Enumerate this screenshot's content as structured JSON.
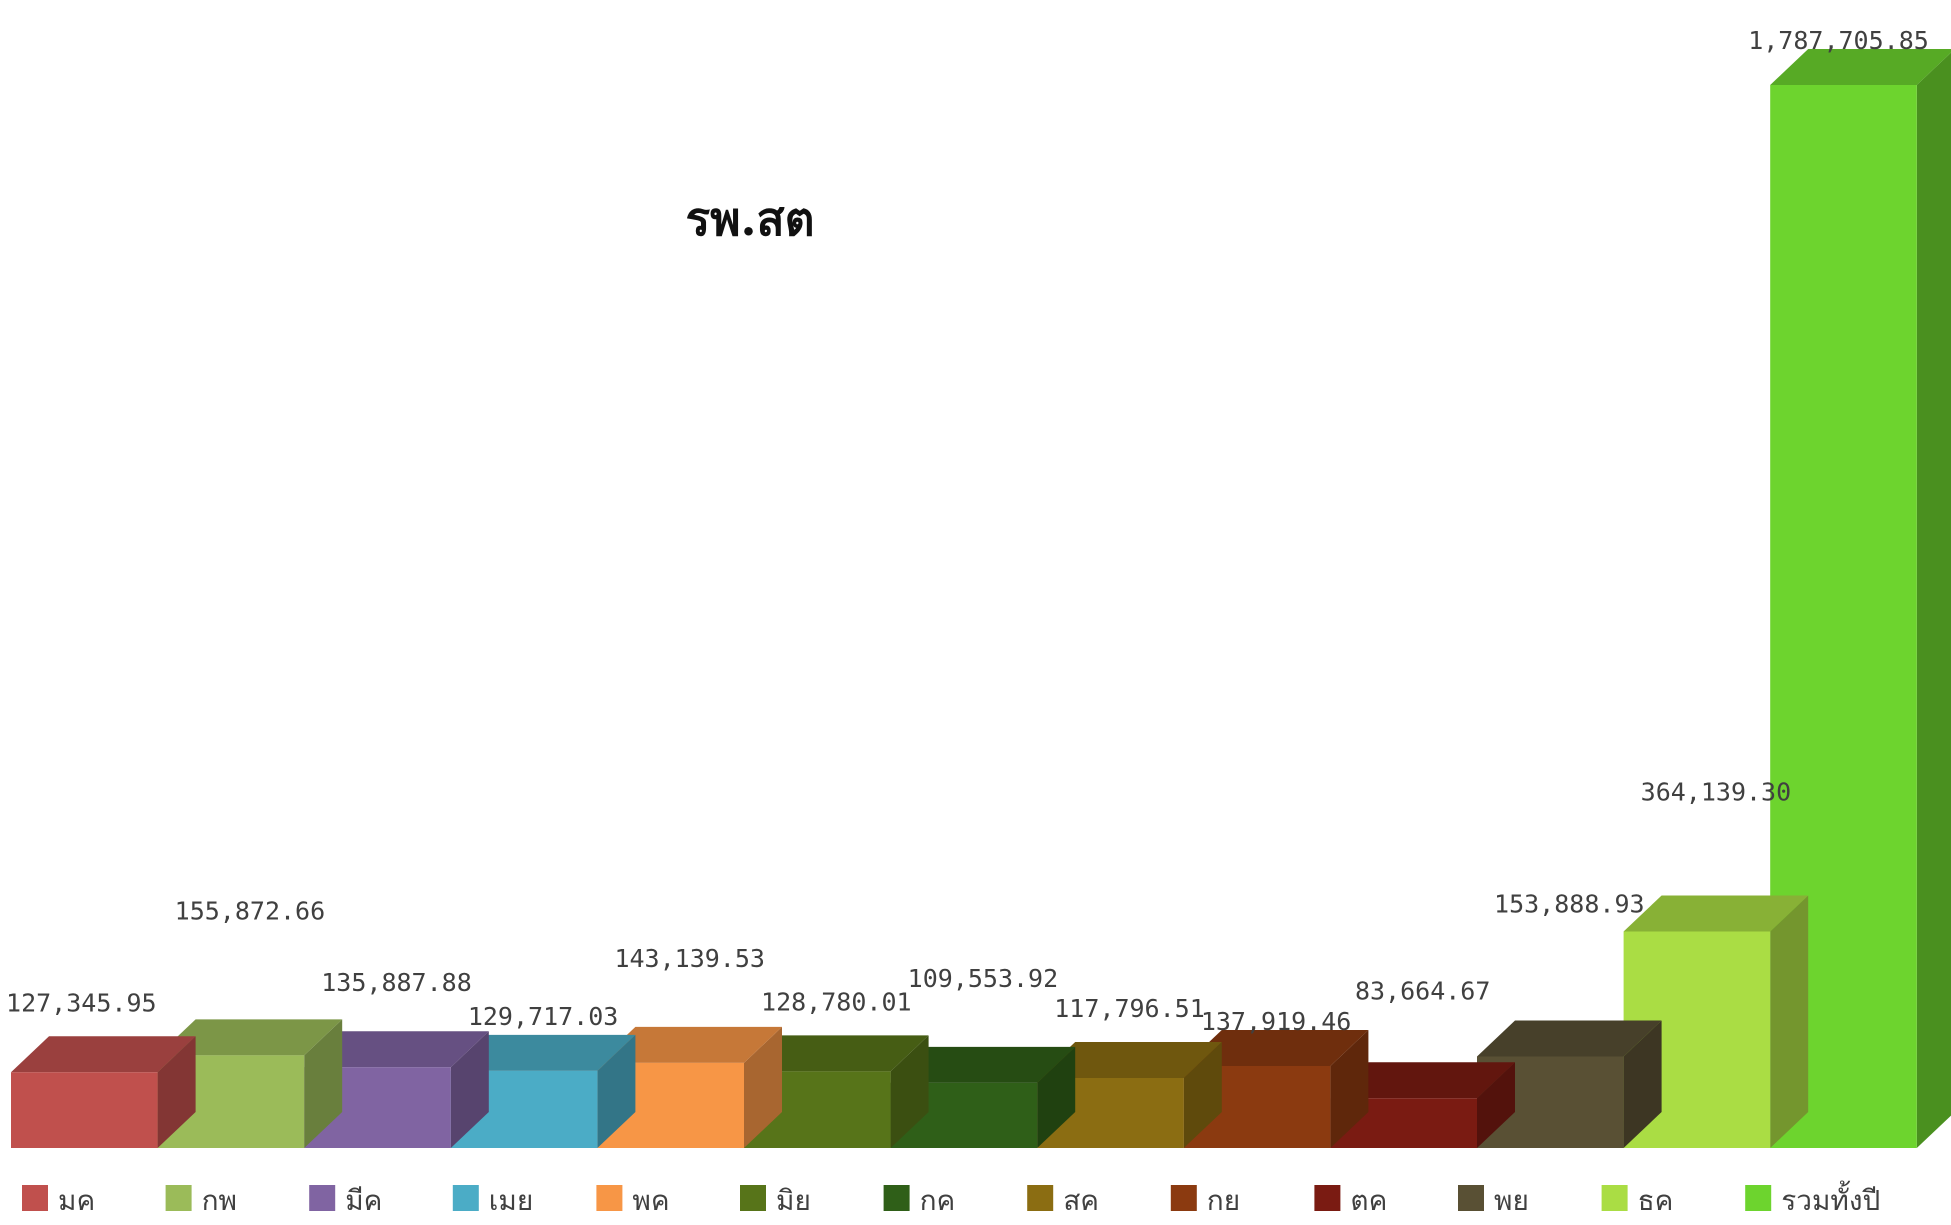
{
  "chart_data": {
    "type": "bar",
    "title": "รพ.สต",
    "xlabel": "",
    "ylabel": "",
    "grid": false,
    "legend_position": "bottom",
    "style": "3d-columns",
    "ylim": [
      0,
      1787705.85
    ],
    "series": [
      {
        "name": "มค",
        "value": 127345.95,
        "label": "127,345.95",
        "color": "#C0504D"
      },
      {
        "name": "กพ",
        "value": 155872.66,
        "label": "155,872.66",
        "color": "#9BBB59"
      },
      {
        "name": "มีค",
        "value": 135887.88,
        "label": "135,887.88",
        "color": "#8064A2"
      },
      {
        "name": "เมย",
        "value": 129717.03,
        "label": "129,717.03",
        "color": "#4BACC6"
      },
      {
        "name": "พค",
        "value": 143139.53,
        "label": "143,139.53",
        "color": "#F79646"
      },
      {
        "name": "มิย",
        "value": 128780.01,
        "label": "128,780.01",
        "color": "#577419"
      },
      {
        "name": "กค",
        "value": 109553.92,
        "label": "109,553.92",
        "color": "#2F5F18"
      },
      {
        "name": "สค",
        "value": 117796.51,
        "label": "117,796.51",
        "color": "#8B6D12"
      },
      {
        "name": "กย",
        "value": 137919.46,
        "label": "137,919.46",
        "color": "#8B3A10"
      },
      {
        "name": "ตค",
        "value": 83664.67,
        "label": "83,664.67",
        "color": "#7A1B12"
      },
      {
        "name": "พย",
        "value": 153888.93,
        "label": "153,888.93",
        "color": "#595034"
      },
      {
        "name": "ธค",
        "value": 364139.3,
        "label": "364,139.30",
        "color": "#AADD44"
      },
      {
        "name": "รวมทั้งปี",
        "value": 1787705.85,
        "label": "1,787,705.85",
        "color": "#6DD42E"
      }
    ]
  }
}
